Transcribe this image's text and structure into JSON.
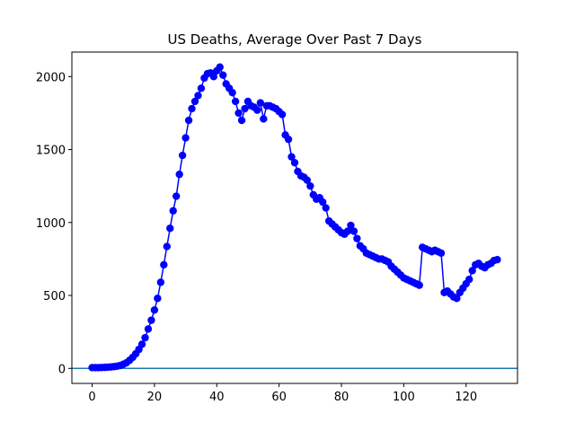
{
  "chart_data": {
    "type": "line",
    "title": "US Deaths, Average Over Past 7 Days",
    "x": [
      0,
      1,
      2,
      3,
      4,
      5,
      6,
      7,
      8,
      9,
      10,
      11,
      12,
      13,
      14,
      15,
      16,
      17,
      18,
      19,
      20,
      21,
      22,
      23,
      24,
      25,
      26,
      27,
      28,
      29,
      30,
      31,
      32,
      33,
      34,
      35,
      36,
      37,
      38,
      39,
      40,
      41,
      42,
      43,
      44,
      45,
      46,
      47,
      48,
      49,
      50,
      51,
      52,
      53,
      54,
      55,
      56,
      57,
      58,
      59,
      60,
      61,
      62,
      63,
      64,
      65,
      66,
      67,
      68,
      69,
      70,
      71,
      72,
      73,
      74,
      75,
      76,
      77,
      78,
      79,
      80,
      81,
      82,
      83,
      84,
      85,
      86,
      87,
      88,
      89,
      90,
      91,
      92,
      93,
      94,
      95,
      96,
      97,
      98,
      99,
      100,
      101,
      102,
      103,
      104,
      105,
      106,
      107,
      108,
      109,
      110,
      111,
      112,
      113,
      114,
      115,
      116,
      117,
      118,
      119,
      120,
      121,
      122,
      123,
      124,
      125,
      126,
      127,
      128,
      129,
      130
    ],
    "series": [
      {
        "color": "#0000ff",
        "values": [
          5,
          5,
          5,
          6,
          7,
          8,
          10,
          12,
          15,
          20,
          28,
          38,
          55,
          75,
          100,
          130,
          165,
          210,
          270,
          330,
          400,
          480,
          590,
          710,
          835,
          960,
          1080,
          1180,
          1330,
          1460,
          1580,
          1700,
          1780,
          1830,
          1870,
          1920,
          1990,
          2020,
          2025,
          2000,
          2040,
          2065,
          2010,
          1950,
          1920,
          1890,
          1830,
          1750,
          1700,
          1780,
          1830,
          1800,
          1790,
          1770,
          1820,
          1710,
          1800,
          1800,
          1790,
          1780,
          1760,
          1740,
          1600,
          1570,
          1450,
          1410,
          1350,
          1320,
          1310,
          1290,
          1250,
          1190,
          1160,
          1170,
          1140,
          1100,
          1010,
          990,
          970,
          950,
          930,
          920,
          940,
          980,
          940,
          890,
          840,
          820,
          790,
          780,
          770,
          760,
          750,
          750,
          740,
          730,
          700,
          680,
          660,
          640,
          620,
          610,
          600,
          590,
          580,
          570,
          830,
          820,
          810,
          800,
          810,
          800,
          790,
          520,
          530,
          510,
          490,
          480,
          520,
          550,
          580,
          610,
          670,
          710,
          720,
          700,
          690,
          710,
          720,
          740,
          745
        ]
      }
    ],
    "hline": {
      "value": 0,
      "color": "#1f77b4"
    },
    "xlim": [
      -6.5,
      136.5
    ],
    "ylim": [
      -103,
      2168
    ],
    "xticks": [
      0,
      20,
      40,
      60,
      80,
      100,
      120
    ],
    "yticks": [
      0,
      500,
      1000,
      1500,
      2000
    ]
  }
}
